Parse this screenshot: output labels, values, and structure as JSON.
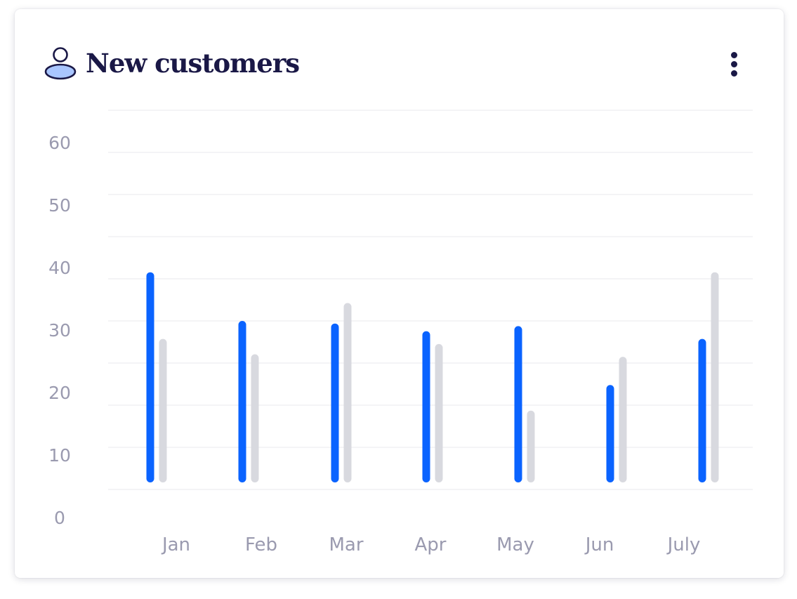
{
  "card": {
    "title": "New customers",
    "icon": "user-icon",
    "menu_icon": "more-vertical-icon"
  },
  "colors": {
    "primary_series": "#0a63ff",
    "secondary_series": "#d8d9df",
    "title": "#1a1846",
    "axis_text": "#9a9aaf",
    "grid": "#f0f0f3",
    "icon_fill": "#a9c6ff"
  },
  "chart_data": {
    "type": "bar",
    "title": "New customers",
    "xlabel": "",
    "ylabel": "",
    "categories": [
      "Jan",
      "Feb",
      "Mar",
      "Apr",
      "May",
      "Jun",
      "July"
    ],
    "series": [
      {
        "values": [
          41,
          31.5,
          31,
          29.5,
          30.5,
          19,
          28
        ]
      },
      {
        "values": [
          28,
          25,
          35,
          27,
          14,
          24.5,
          41
        ]
      }
    ],
    "y_ticks": [
      "0",
      "10",
      "20",
      "30",
      "40",
      "50",
      "60"
    ],
    "ylim": [
      0,
      60
    ],
    "grid": true,
    "legend": "none"
  }
}
